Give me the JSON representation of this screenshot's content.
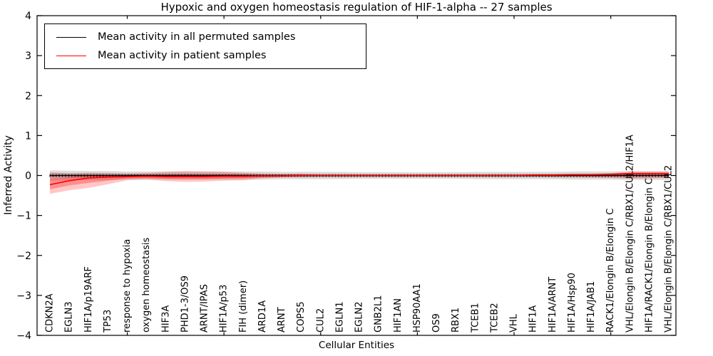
{
  "chart_data": {
    "type": "line",
    "title": "Hypoxic and oxygen homeostasis regulation of HIF-1-alpha -- 27 samples",
    "xlabel": "Cellular Entities",
    "ylabel": "Inferred Activity",
    "ylim": [
      -4,
      4
    ],
    "yticks": [
      4,
      3,
      2,
      1,
      0,
      -1,
      -2,
      -3,
      -4
    ],
    "grid": false,
    "legend_position": "upper left",
    "x_tick_label_rotation_deg": 90,
    "sparse_axis_tick_indices": [
      4,
      9,
      14,
      19,
      24,
      29
    ],
    "categories": [
      "CDKN2A",
      "EGLN3",
      "HIF1A/p19ARF",
      "TP53",
      "response to hypoxia",
      "oxygen homeostasis",
      "HIF3A",
      "PHD1-3/OS9",
      "ARNT/IPAS",
      "HIF1A/p53",
      "FIH (dimer)",
      "ARD1A",
      "ARNT",
      "COPS5",
      "CUL2",
      "EGLN1",
      "EGLN2",
      "GNB2L1",
      "HIF1AN",
      "HSP90AA1",
      "OS9",
      "RBX1",
      "TCEB1",
      "TCEB2",
      "VHL",
      "HIF1A",
      "HIF1A/ARNT",
      "HIF1A/Hsp90",
      "HIF1A/JAB1",
      "RACK1/Elongin B/Elongin C",
      "VHL/Elongin B/Elongin C/RBX1/CUL2/HIF1A",
      "HIF1A/RACK1/Elongin B/Elongin C",
      "VHL/Elongin B/Elongin C/RBX1/CUL2"
    ],
    "series": [
      {
        "name": "Mean activity in all permuted samples",
        "color": "#000000",
        "band_color": "#999999",
        "values": [
          0,
          0,
          0,
          0,
          0,
          0,
          0,
          0,
          0,
          0,
          0,
          0,
          0,
          0,
          0,
          0,
          0,
          0,
          0,
          0,
          0,
          0,
          0,
          0,
          0,
          0,
          0,
          0,
          0,
          0,
          0,
          0,
          0
        ],
        "band_lower": [
          -0.13,
          -0.12,
          -0.11,
          -0.11,
          -0.1,
          -0.1,
          -0.1,
          -0.1,
          -0.1,
          -0.1,
          -0.1,
          -0.1,
          -0.09,
          -0.09,
          -0.09,
          -0.09,
          -0.08,
          -0.08,
          -0.08,
          -0.08,
          -0.08,
          -0.08,
          -0.09,
          -0.09,
          -0.09,
          -0.09,
          -0.09,
          -0.1,
          -0.1,
          -0.1,
          -0.11,
          -0.11,
          -0.11
        ],
        "band_upper": [
          0.13,
          0.12,
          0.11,
          0.11,
          0.1,
          0.1,
          0.1,
          0.1,
          0.1,
          0.1,
          0.1,
          0.1,
          0.09,
          0.09,
          0.09,
          0.09,
          0.08,
          0.08,
          0.08,
          0.08,
          0.08,
          0.08,
          0.09,
          0.09,
          0.09,
          0.09,
          0.09,
          0.1,
          0.1,
          0.1,
          0.11,
          0.11,
          0.11
        ]
      },
      {
        "name": "Mean activity in patient samples",
        "color": "#ff0000",
        "band_color": "#ff0000",
        "values": [
          -0.23,
          -0.13,
          -0.06,
          -0.04,
          -0.03,
          -0.02,
          -0.03,
          -0.03,
          -0.03,
          -0.02,
          -0.02,
          -0.01,
          -0.01,
          0,
          0,
          0,
          0,
          0,
          0,
          0,
          0,
          0,
          0,
          0,
          0,
          0.01,
          0.01,
          0.02,
          0.02,
          0.03,
          0.05,
          0.05,
          0.05
        ],
        "band_lower": [
          -0.46,
          -0.37,
          -0.31,
          -0.22,
          -0.12,
          -0.1,
          -0.14,
          -0.16,
          -0.15,
          -0.13,
          -0.12,
          -0.07,
          -0.05,
          -0.04,
          -0.03,
          -0.03,
          -0.03,
          -0.03,
          -0.03,
          -0.03,
          -0.03,
          -0.03,
          -0.03,
          -0.03,
          -0.03,
          -0.03,
          -0.04,
          -0.04,
          -0.05,
          -0.06,
          -0.08,
          -0.07,
          -0.06
        ],
        "band_upper": [
          0.08,
          0.05,
          0.07,
          0.06,
          0.05,
          0.06,
          0.09,
          0.11,
          0.1,
          0.09,
          0.07,
          0.04,
          0.03,
          0.04,
          0.02,
          0.02,
          0.02,
          0.02,
          0.02,
          0.02,
          0.02,
          0.02,
          0.02,
          0.02,
          0.02,
          0.03,
          0.03,
          0.04,
          0.04,
          0.06,
          0.09,
          0.09,
          0.09
        ]
      }
    ]
  }
}
